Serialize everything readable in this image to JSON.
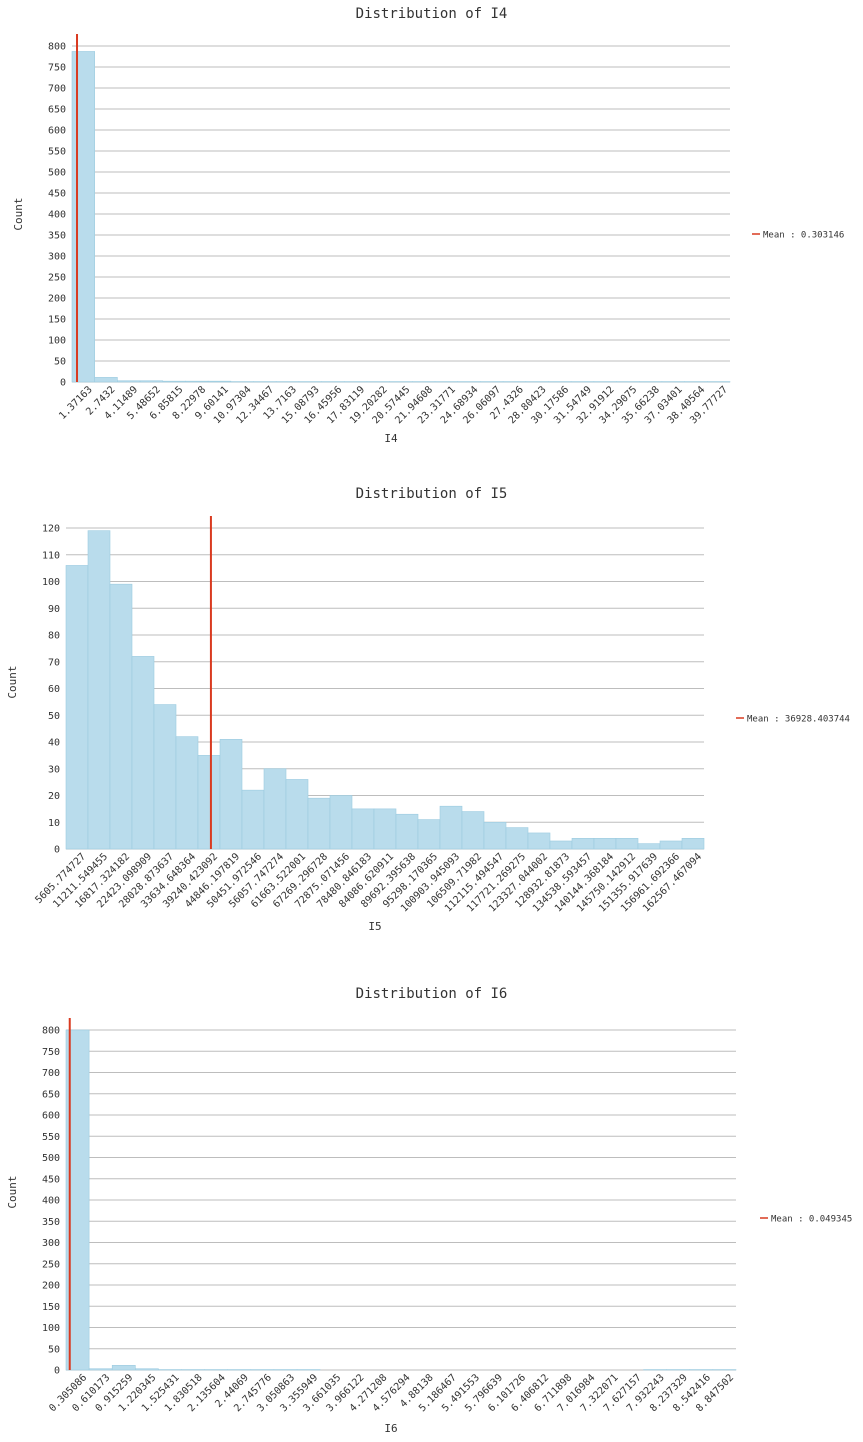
{
  "chart_data": [
    {
      "type": "bar",
      "title": "Distribution of I4",
      "xlabel": "I4",
      "ylabel": "Count",
      "ylim": [
        0,
        800
      ],
      "yticks": [
        0,
        50,
        100,
        150,
        200,
        250,
        300,
        350,
        400,
        450,
        500,
        550,
        600,
        650,
        700,
        750,
        800
      ],
      "grid": true,
      "legend_position": "right",
      "categories": [
        "1.37163",
        "2.7432",
        "4.11489",
        "5.48652",
        "6.85815",
        "8.22978",
        "9.60141",
        "10.97304",
        "12.34467",
        "13.7163",
        "15.08793",
        "16.45956",
        "17.83119",
        "19.20282",
        "20.57445",
        "21.94608",
        "23.31771",
        "24.68934",
        "26.06097",
        "27.4326",
        "28.80423",
        "30.17586",
        "31.54749",
        "32.91912",
        "34.29075",
        "35.66238",
        "37.03401",
        "38.40564",
        "39.77727"
      ],
      "values": [
        787,
        11,
        3,
        3,
        2,
        2,
        2,
        1,
        1,
        1,
        1,
        1,
        1,
        1,
        1,
        1,
        1,
        1,
        1,
        1,
        1,
        1,
        1,
        1,
        1,
        1,
        1,
        1,
        1
      ],
      "series": [
        {
          "name": "Mean : 0.303146",
          "mean": 0.303146
        }
      ],
      "colors": {
        "bar": "#b9dcec",
        "bar_edge": "#9ccbe0",
        "mean": "#d93a20",
        "grid": "#bdbdbd"
      }
    },
    {
      "type": "bar",
      "title": "Distribution of I5",
      "xlabel": "I5",
      "ylabel": "Count",
      "ylim": [
        0,
        120
      ],
      "yticks": [
        0,
        10,
        20,
        30,
        40,
        50,
        60,
        70,
        80,
        90,
        100,
        110,
        120
      ],
      "grid": true,
      "legend_position": "right",
      "categories": [
        "5605.774727",
        "11211.549455",
        "16817.324182",
        "22423.098909",
        "28028.873637",
        "33634.648364",
        "39240.423092",
        "44846.197819",
        "50451.972546",
        "56057.747274",
        "61663.522001",
        "67269.296728",
        "72875.071456",
        "78480.846183",
        "84086.620911",
        "89692.395638",
        "95298.170365",
        "100903.945093",
        "106509.71982",
        "112115.494547",
        "117721.269275",
        "123327.044002",
        "128932.81873",
        "134538.593457",
        "140144.368184",
        "145750.142912",
        "151355.917639",
        "156961.692366",
        "162567.467094"
      ],
      "values": [
        106,
        119,
        99,
        72,
        54,
        42,
        35,
        41,
        22,
        30,
        26,
        19,
        20,
        15,
        15,
        13,
        11,
        16,
        14,
        10,
        8,
        6,
        3,
        4,
        4,
        4,
        2,
        3,
        4
      ],
      "series": [
        {
          "name": "Mean : 36928.403744",
          "mean": 36928.403744
        }
      ],
      "colors": {
        "bar": "#b9dcec",
        "bar_edge": "#9ccbe0",
        "mean": "#d93a20",
        "grid": "#bdbdbd"
      }
    },
    {
      "type": "bar",
      "title": "Distribution of I6",
      "xlabel": "I6",
      "ylabel": "Count",
      "ylim": [
        0,
        800
      ],
      "yticks": [
        0,
        50,
        100,
        150,
        200,
        250,
        300,
        350,
        400,
        450,
        500,
        550,
        600,
        650,
        700,
        750,
        800
      ],
      "grid": true,
      "legend_position": "right",
      "categories": [
        "0.305086",
        "0.610173",
        "0.915259",
        "1.220345",
        "1.525431",
        "1.830518",
        "2.135604",
        "2.44069",
        "2.745776",
        "3.050863",
        "3.355949",
        "3.661035",
        "3.966122",
        "4.271208",
        "4.576294",
        "4.88138",
        "5.186467",
        "5.491553",
        "5.796639",
        "6.101726",
        "6.406812",
        "6.711898",
        "7.016984",
        "7.322071",
        "7.627157",
        "7.932243",
        "8.237329",
        "8.542416",
        "8.847502"
      ],
      "values": [
        800,
        3,
        11,
        3,
        1,
        1,
        1,
        1,
        1,
        1,
        1,
        0,
        0,
        0,
        0,
        0,
        0,
        0,
        0,
        0,
        0,
        0,
        0,
        0,
        0,
        1,
        1,
        1,
        1
      ],
      "series": [
        {
          "name": "Mean : 0.049345",
          "mean": 0.049345
        }
      ],
      "colors": {
        "bar": "#b9dcec",
        "bar_edge": "#9ccbe0",
        "mean": "#d93a20",
        "grid": "#bdbdbd"
      }
    }
  ]
}
